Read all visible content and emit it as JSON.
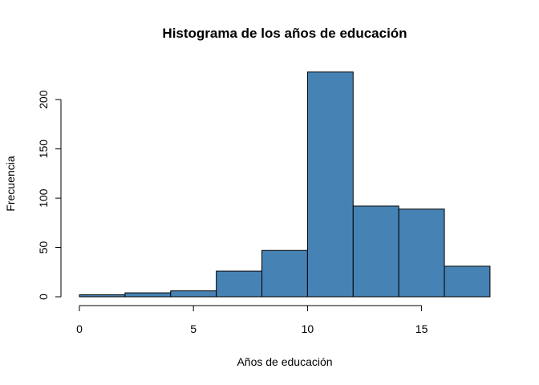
{
  "chart_data": {
    "type": "bar",
    "title": "Histograma de los años de educación",
    "xlabel": "Años de educación",
    "ylabel": "Frecuencia",
    "bins": [
      {
        "start": 0,
        "end": 2,
        "count": 2
      },
      {
        "start": 2,
        "end": 4,
        "count": 4
      },
      {
        "start": 4,
        "end": 6,
        "count": 6
      },
      {
        "start": 6,
        "end": 8,
        "count": 26
      },
      {
        "start": 8,
        "end": 10,
        "count": 47
      },
      {
        "start": 10,
        "end": 12,
        "count": 228
      },
      {
        "start": 12,
        "end": 14,
        "count": 92
      },
      {
        "start": 14,
        "end": 16,
        "count": 89
      },
      {
        "start": 16,
        "end": 18,
        "count": 31
      }
    ],
    "xticks": [
      0,
      5,
      10,
      15
    ],
    "yticks": [
      0,
      50,
      100,
      150,
      200
    ],
    "xlim": [
      0,
      18
    ],
    "ylim": [
      0,
      228
    ],
    "bar_color": "#4682b4",
    "grid": false,
    "legend": "none"
  }
}
